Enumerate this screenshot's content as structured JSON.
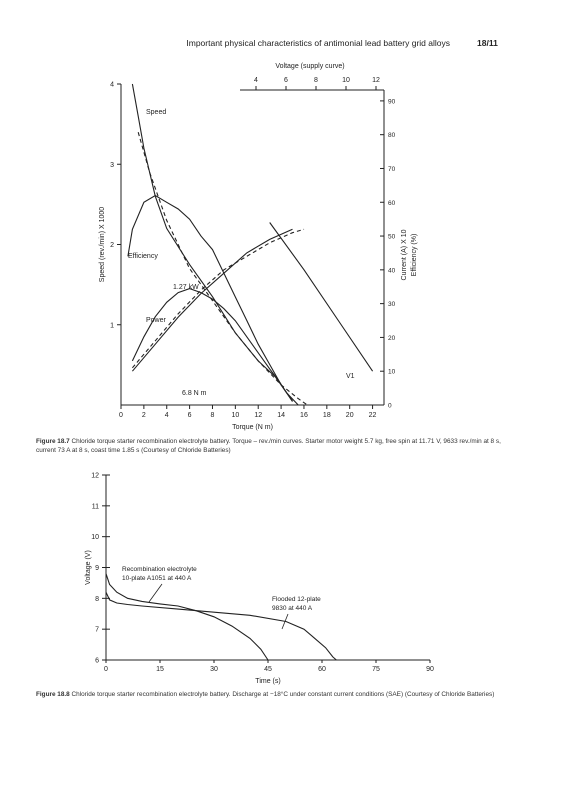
{
  "header": {
    "title": "Important physical characteristics of antimonial lead battery grid alloys",
    "page_number": "18/11"
  },
  "figure1": {
    "caption_label": "Figure 18.7",
    "caption_text": "Chloride torque starter recombination electrolyte battery. Torque – rev./min curves. Starter motor weight 5.7 kg, free spin at 11.71 V, 9633 rev./min at 8 s, current 73 A at 8 s, coast time 1.85 s (Courtesy of Chloride Batteries)"
  },
  "figure2": {
    "caption_label": "Figure 18.8",
    "caption_text": "Chloride torque starter recombination electrolyte battery. Discharge at −18°C under constant current conditions (SAE) (Courtesy of Chloride Batteries)"
  },
  "chart_data": [
    {
      "type": "line",
      "xlabel": "Torque (N m)",
      "x_ticks": [
        "0",
        "2",
        "4",
        "6",
        "8",
        "10",
        "12",
        "14",
        "16",
        "18",
        "20",
        "22"
      ],
      "xlim": [
        0,
        23
      ],
      "ylabel_left": "Speed (rev./min) X 1000",
      "y_left_ticks": [
        "1",
        "2",
        "3",
        "4"
      ],
      "ylim_left": [
        0,
        4
      ],
      "top_axis_label": "Voltage (supply curve)",
      "top_axis_ticks": [
        "4",
        "6",
        "8",
        "10",
        "12"
      ],
      "top_axis_range": [
        4,
        12
      ],
      "ylabel_right": "Current (A) X 10\nEfficiency (%)",
      "y_right_ticks": [
        "0",
        "10",
        "20",
        "30",
        "40",
        "50",
        "60",
        "70",
        "80",
        "90"
      ],
      "ylim_right": [
        0,
        95
      ],
      "series": [
        {
          "name": "Speed",
          "style": "solid",
          "axis": "left",
          "x": [
            1.0,
            1.5,
            2.0,
            3.0,
            4.0,
            6.0,
            8.0,
            10.0,
            12.0,
            13.5,
            14.5,
            15.5
          ],
          "y": [
            4.0,
            3.6,
            3.2,
            2.6,
            2.2,
            1.75,
            1.35,
            0.9,
            0.55,
            0.35,
            0.15,
            0.0
          ]
        },
        {
          "name": "",
          "style": "dashed",
          "axis": "left",
          "x": [
            1.5,
            2.5,
            4.0,
            6.0,
            8.0,
            10.0,
            12.0,
            14.0,
            15.5,
            16.3
          ],
          "y": [
            3.4,
            2.9,
            2.3,
            1.7,
            1.3,
            0.9,
            0.55,
            0.25,
            0.08,
            0.0
          ]
        },
        {
          "name": "Efficiency",
          "style": "solid",
          "axis": "right",
          "x": [
            0.6,
            1.0,
            2.0,
            3.0,
            4.0,
            5.0,
            6.0,
            7.0,
            8.0,
            9.0,
            10.0,
            11.0,
            12.0,
            13.0,
            14.0,
            15.0
          ],
          "y": [
            44,
            52,
            60,
            62,
            60,
            58,
            55,
            50,
            46,
            39,
            32,
            25,
            18,
            12,
            6,
            1
          ]
        },
        {
          "name": "Power",
          "style": "solid",
          "axis": "left",
          "x": [
            1.0,
            2.0,
            3.0,
            4.0,
            5.0,
            6.0,
            7.0,
            8.0,
            9.0,
            10.0,
            11.0,
            12.0,
            13.0,
            13.8,
            14.5,
            15.0
          ],
          "y": [
            0.55,
            0.85,
            1.1,
            1.28,
            1.4,
            1.45,
            1.4,
            1.32,
            1.2,
            1.05,
            0.85,
            0.65,
            0.45,
            0.3,
            0.15,
            0.05
          ]
        },
        {
          "name": "",
          "style": "solid",
          "axis": "right",
          "x": [
            1.0,
            3.0,
            5.0,
            7.0,
            9.0,
            11.0,
            13.0,
            15.0
          ],
          "y": [
            10,
            18,
            26,
            33,
            39,
            45,
            49,
            52
          ]
        },
        {
          "name": "",
          "style": "dashed",
          "axis": "right",
          "x": [
            1.0,
            3.0,
            5.0,
            7.0,
            9.0,
            11.0,
            13.0,
            15.0,
            16.0
          ],
          "y": [
            11,
            19,
            27,
            34,
            40,
            44,
            48,
            51,
            52
          ]
        },
        {
          "name": "V1",
          "style": "solid",
          "axis": "right",
          "x": [
            13.0,
            16.0,
            19.0,
            22.0
          ],
          "y": [
            54,
            40,
            25,
            10
          ]
        }
      ],
      "annotations": [
        "Speed",
        "Efficiency",
        "Power",
        "1.27 kW",
        "6.8 N m",
        "V1"
      ]
    },
    {
      "type": "line",
      "xlabel": "Time (s)",
      "x_ticks": [
        "0",
        "15",
        "30",
        "45",
        "60",
        "75",
        "90"
      ],
      "xlim": [
        0,
        90
      ],
      "ylabel": "Voltage (V)",
      "y_ticks": [
        "6",
        "7",
        "8",
        "9",
        "10",
        "11",
        "12"
      ],
      "ylim": [
        6,
        12
      ],
      "series": [
        {
          "name": "Recombination electrolyte 10-plate A1051 at 440 A",
          "x": [
            0,
            1,
            3,
            6,
            10,
            15,
            20,
            25,
            30,
            35,
            40,
            43,
            45
          ],
          "y": [
            8.8,
            8.45,
            8.2,
            8.0,
            7.9,
            7.82,
            7.75,
            7.6,
            7.4,
            7.1,
            6.7,
            6.35,
            6.0
          ]
        },
        {
          "name": "Flooded 12-plate 9830 at 440 A",
          "x": [
            0,
            1,
            3,
            6,
            10,
            20,
            30,
            40,
            50,
            55,
            58,
            61,
            63,
            64
          ],
          "y": [
            8.2,
            7.95,
            7.85,
            7.8,
            7.75,
            7.65,
            7.55,
            7.45,
            7.25,
            7.0,
            6.7,
            6.4,
            6.1,
            6.0
          ]
        }
      ],
      "annotations": [
        "Recombination electrolyte",
        "10-plate A1051 at 440 A",
        "Flooded 12-plate",
        "9830 at 440 A"
      ]
    }
  ]
}
